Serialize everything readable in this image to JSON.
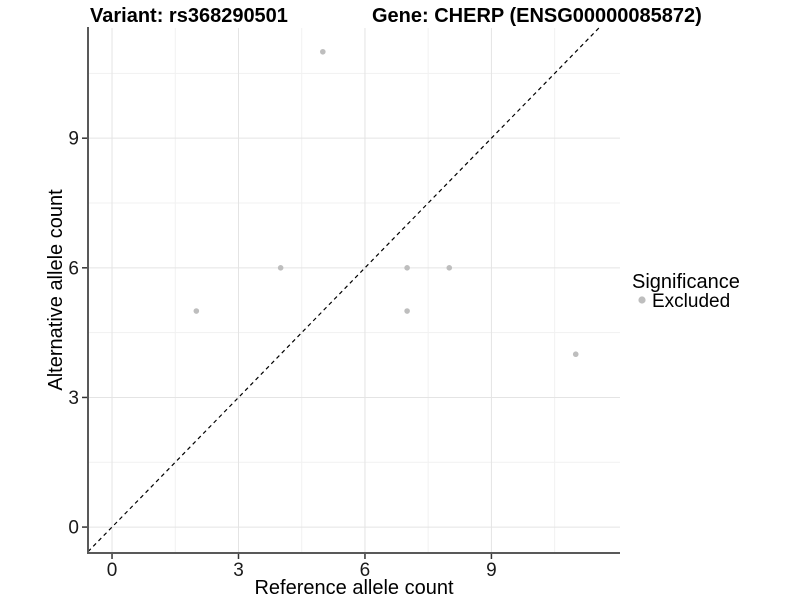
{
  "chart_data": {
    "type": "scatter",
    "titles": {
      "left": "Variant: rs368290501",
      "right": "Gene: CHERP (ENSG00000085872)"
    },
    "xlabel": "Reference allele count",
    "ylabel": "Alternative allele count",
    "xlim": [
      -0.57,
      12.05
    ],
    "ylim": [
      -0.6,
      11.55
    ],
    "x_breaks": [
      0,
      3,
      6,
      9
    ],
    "y_breaks": [
      0,
      3,
      6,
      9
    ],
    "x_minor_breaks": [
      1.5,
      4.5,
      7.5,
      10.5
    ],
    "y_minor_breaks": [
      1.5,
      4.5,
      7.5,
      10.5
    ],
    "grid": "on",
    "reference_line": {
      "type": "abline",
      "intercept": 0,
      "slope": 1,
      "style": "dashed",
      "color": "#000000"
    },
    "series": [
      {
        "name": "Excluded",
        "color": "#bebebe",
        "points": [
          {
            "x": 2,
            "y": 5
          },
          {
            "x": 4,
            "y": 6
          },
          {
            "x": 5,
            "y": 11
          },
          {
            "x": 7,
            "y": 5
          },
          {
            "x": 7,
            "y": 6
          },
          {
            "x": 8,
            "y": 6
          },
          {
            "x": 11,
            "y": 4
          }
        ]
      }
    ],
    "legend": {
      "title": "Significance",
      "position": "right",
      "items": [
        {
          "label": "Excluded",
          "color": "#bebebe"
        }
      ]
    },
    "colors": {
      "background": "#ffffff",
      "point": "#bebebe",
      "grid_major": "#e4e4e4",
      "grid_minor": "#f1f1f1",
      "axis_line": "#595959",
      "tick_mark": "#333333",
      "tick_label": "#1a1a1a",
      "reference_line": "#000000"
    }
  }
}
